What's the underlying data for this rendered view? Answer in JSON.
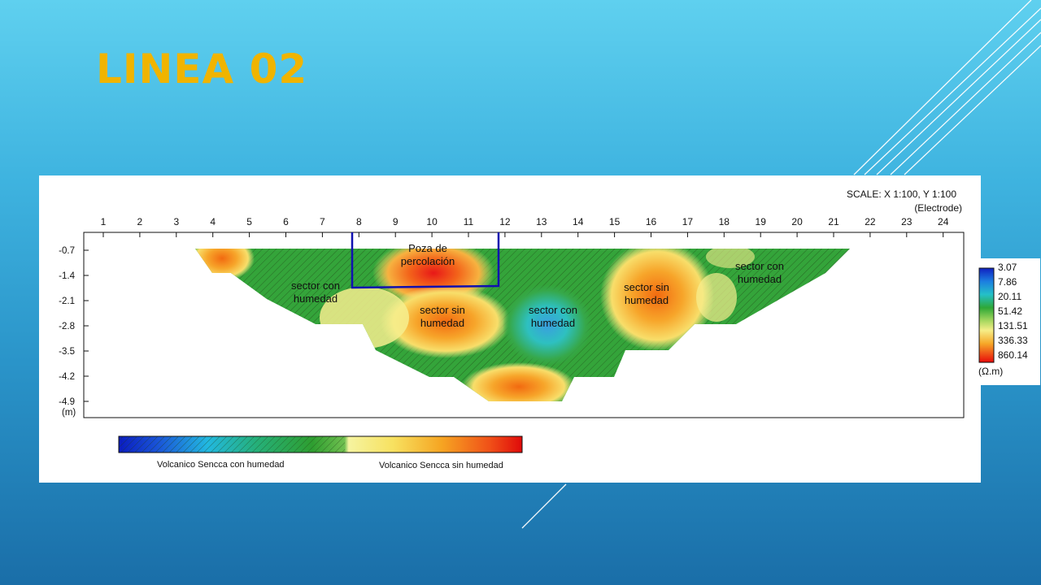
{
  "slide": {
    "title": "LINEA 02"
  },
  "section": {
    "scale_label": "SCALE: X 1:100, Y 1:100",
    "electrode_label": "(Electrode)",
    "electrodes": [
      "1",
      "2",
      "3",
      "4",
      "5",
      "6",
      "7",
      "8",
      "9",
      "10",
      "11",
      "12",
      "13",
      "14",
      "15",
      "16",
      "17",
      "18",
      "19",
      "20",
      "21",
      "22",
      "23",
      "24"
    ],
    "depths": [
      "-0.7",
      "-1.4",
      "-2.1",
      "-2.8",
      "-3.5",
      "-4.2",
      "-4.9"
    ],
    "depth_unit": "(m)",
    "annotations": [
      {
        "id": "poza",
        "lines": [
          "Poza de",
          "percolación"
        ]
      },
      {
        "id": "a1",
        "lines": [
          "sector con",
          "humedad"
        ]
      },
      {
        "id": "a2",
        "lines": [
          "sector sin",
          "humedad"
        ]
      },
      {
        "id": "a3",
        "lines": [
          "sector con",
          "humedad"
        ]
      },
      {
        "id": "a4",
        "lines": [
          "sector sin",
          "humedad"
        ]
      },
      {
        "id": "a5",
        "lines": [
          "sector con",
          "humedad"
        ]
      }
    ]
  },
  "legend": {
    "values": [
      "3.07",
      "7.86",
      "20.11",
      "51.42",
      "131.51",
      "336.33",
      "860.14"
    ],
    "unit": "(Ω.m)"
  },
  "colorbar": {
    "label_left": "Volcanico Sencca con humedad",
    "label_right": "Volcanico Sencca sin humedad",
    "colors": {
      "deep_blue": "#0a2ec8",
      "cyan": "#22c0e0",
      "green": "#2ca02c",
      "yellow": "#f6f070",
      "orange": "#f5a020",
      "red": "#e81010"
    }
  }
}
